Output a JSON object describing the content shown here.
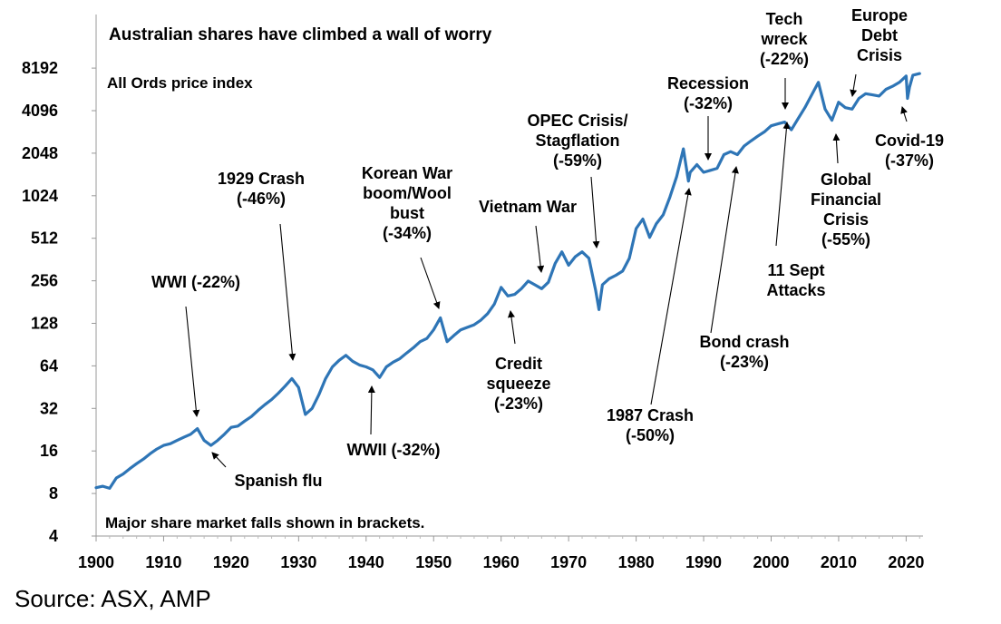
{
  "chart_data": {
    "type": "line",
    "title": "Australian shares have climbed a wall of worry",
    "ylabel": "All Ords price index",
    "note": "Major share market falls shown in brackets.",
    "y_scale": "log2",
    "ylim": [
      4,
      10000
    ],
    "xlim": [
      1900,
      2022.5
    ],
    "x_ticks": [
      "1900",
      "1910",
      "1920",
      "1930",
      "1940",
      "1950",
      "1960",
      "1970",
      "1980",
      "1990",
      "2000",
      "2010",
      "2020"
    ],
    "y_ticks": [
      "4",
      "8",
      "16",
      "32",
      "64",
      "128",
      "256",
      "512",
      "1024",
      "2048",
      "4096",
      "8192"
    ],
    "line_color": "#2e75b6",
    "series": [
      {
        "x": [
          1900,
          1901,
          1902,
          1903,
          1904,
          1905,
          1906,
          1907,
          1908,
          1909,
          1910,
          1911,
          1912,
          1913,
          1914,
          1915,
          1916,
          1917,
          1918,
          1919,
          1920,
          1921,
          1922,
          1923,
          1924,
          1925,
          1926,
          1927,
          1928,
          1929,
          1930,
          1931,
          1932,
          1933,
          1934,
          1935,
          1936,
          1937,
          1938,
          1939,
          1940,
          1941,
          1942,
          1943,
          1944,
          1945,
          1946,
          1947,
          1948,
          1949,
          1950,
          1951,
          1952,
          1953,
          1954,
          1955,
          1956,
          1957,
          1958,
          1959,
          1960,
          1961,
          1962,
          1963,
          1964,
          1965,
          1966,
          1967,
          1968,
          1969,
          1970,
          1971,
          1972,
          1973,
          1974,
          1974.5,
          1975,
          1976,
          1977,
          1978,
          1979,
          1980,
          1981,
          1982,
          1983,
          1984,
          1985,
          1986,
          1987,
          1987.75,
          1988,
          1989,
          1990,
          1991,
          1992,
          1993,
          1994,
          1995,
          1996,
          1997,
          1998,
          1999,
          2000,
          2001,
          2002,
          2003,
          2004,
          2005,
          2006,
          2007,
          2008,
          2009,
          2010,
          2011,
          2012,
          2013,
          2014,
          2015,
          2016,
          2017,
          2018,
          2019,
          2020,
          2020.2,
          2020.5,
          2021,
          2022
        ],
        "y": [
          8.8,
          9.0,
          8.7,
          10.3,
          11.0,
          12.0,
          13.0,
          14.0,
          15.3,
          16.5,
          17.5,
          18.0,
          19.0,
          20.0,
          21.0,
          23.0,
          19.0,
          17.5,
          19.0,
          21.0,
          23.5,
          24.0,
          26.0,
          28.0,
          31.0,
          34.0,
          37.0,
          41.0,
          46.0,
          52.0,
          45.0,
          29.0,
          32.0,
          40.0,
          52.0,
          63.0,
          70.0,
          76.0,
          69.0,
          65.0,
          63.0,
          60.0,
          53.0,
          63.0,
          68.0,
          72.0,
          79.0,
          86.0,
          95.0,
          100.0,
          115.0,
          140.0,
          95.0,
          105.0,
          115.0,
          120.0,
          125.0,
          135.0,
          150.0,
          175.0,
          230.0,
          200.0,
          205.0,
          225.0,
          255.0,
          240.0,
          225.0,
          250.0,
          340.0,
          410.0,
          330.0,
          380.0,
          410.0,
          370.0,
          220.0,
          160.0,
          240.0,
          265.0,
          280.0,
          300.0,
          370.0,
          600.0,
          700.0,
          520.0,
          650.0,
          750.0,
          1000.0,
          1400.0,
          2200.0,
          1300.0,
          1500.0,
          1700.0,
          1500.0,
          1550.0,
          1600.0,
          2000.0,
          2100.0,
          2000.0,
          2300.0,
          2500.0,
          2700.0,
          2900.0,
          3200.0,
          3300.0,
          3400.0,
          3000.0,
          3600.0,
          4300.0,
          5300.0,
          6500.0,
          4200.0,
          3500.0,
          4700.0,
          4300.0,
          4200.0,
          5000.0,
          5400.0,
          5300.0,
          5200.0,
          5800.0,
          6100.0,
          6500.0,
          7200.0,
          5000.0,
          6000.0,
          7300.0,
          7500.0
        ]
      }
    ],
    "annotations": [
      {
        "lines": [
          "Tech",
          "wreck",
          "(-22%)"
        ]
      },
      {
        "lines": [
          "Europe",
          "Debt",
          "Crisis"
        ]
      },
      {
        "lines": [
          "Recession",
          "(-32%)"
        ]
      },
      {
        "lines": [
          "OPEC Crisis/",
          "Stagflation",
          "(-59%)"
        ]
      },
      {
        "lines": [
          "Covid-19",
          "(-37%)"
        ]
      },
      {
        "lines": [
          "1929 Crash",
          "(-46%)"
        ]
      },
      {
        "lines": [
          "Korean War",
          "boom/Wool",
          "bust",
          "(-34%)"
        ]
      },
      {
        "lines": [
          "Global",
          "Financial",
          "Crisis",
          "(-55%)"
        ]
      },
      {
        "lines": [
          "Vietnam War"
        ]
      },
      {
        "lines": [
          "11 Sept",
          "Attacks"
        ]
      },
      {
        "lines": [
          "WWI (-22%)"
        ]
      },
      {
        "lines": [
          "Bond crash",
          "(-23%)"
        ]
      },
      {
        "lines": [
          "Credit",
          "squeeze",
          "(-23%)"
        ]
      },
      {
        "lines": [
          "1987 Crash",
          "(-50%)"
        ]
      },
      {
        "lines": [
          "WWII (-32%)"
        ]
      },
      {
        "lines": [
          "Spanish flu"
        ]
      }
    ]
  },
  "source": "Source: ASX, AMP"
}
